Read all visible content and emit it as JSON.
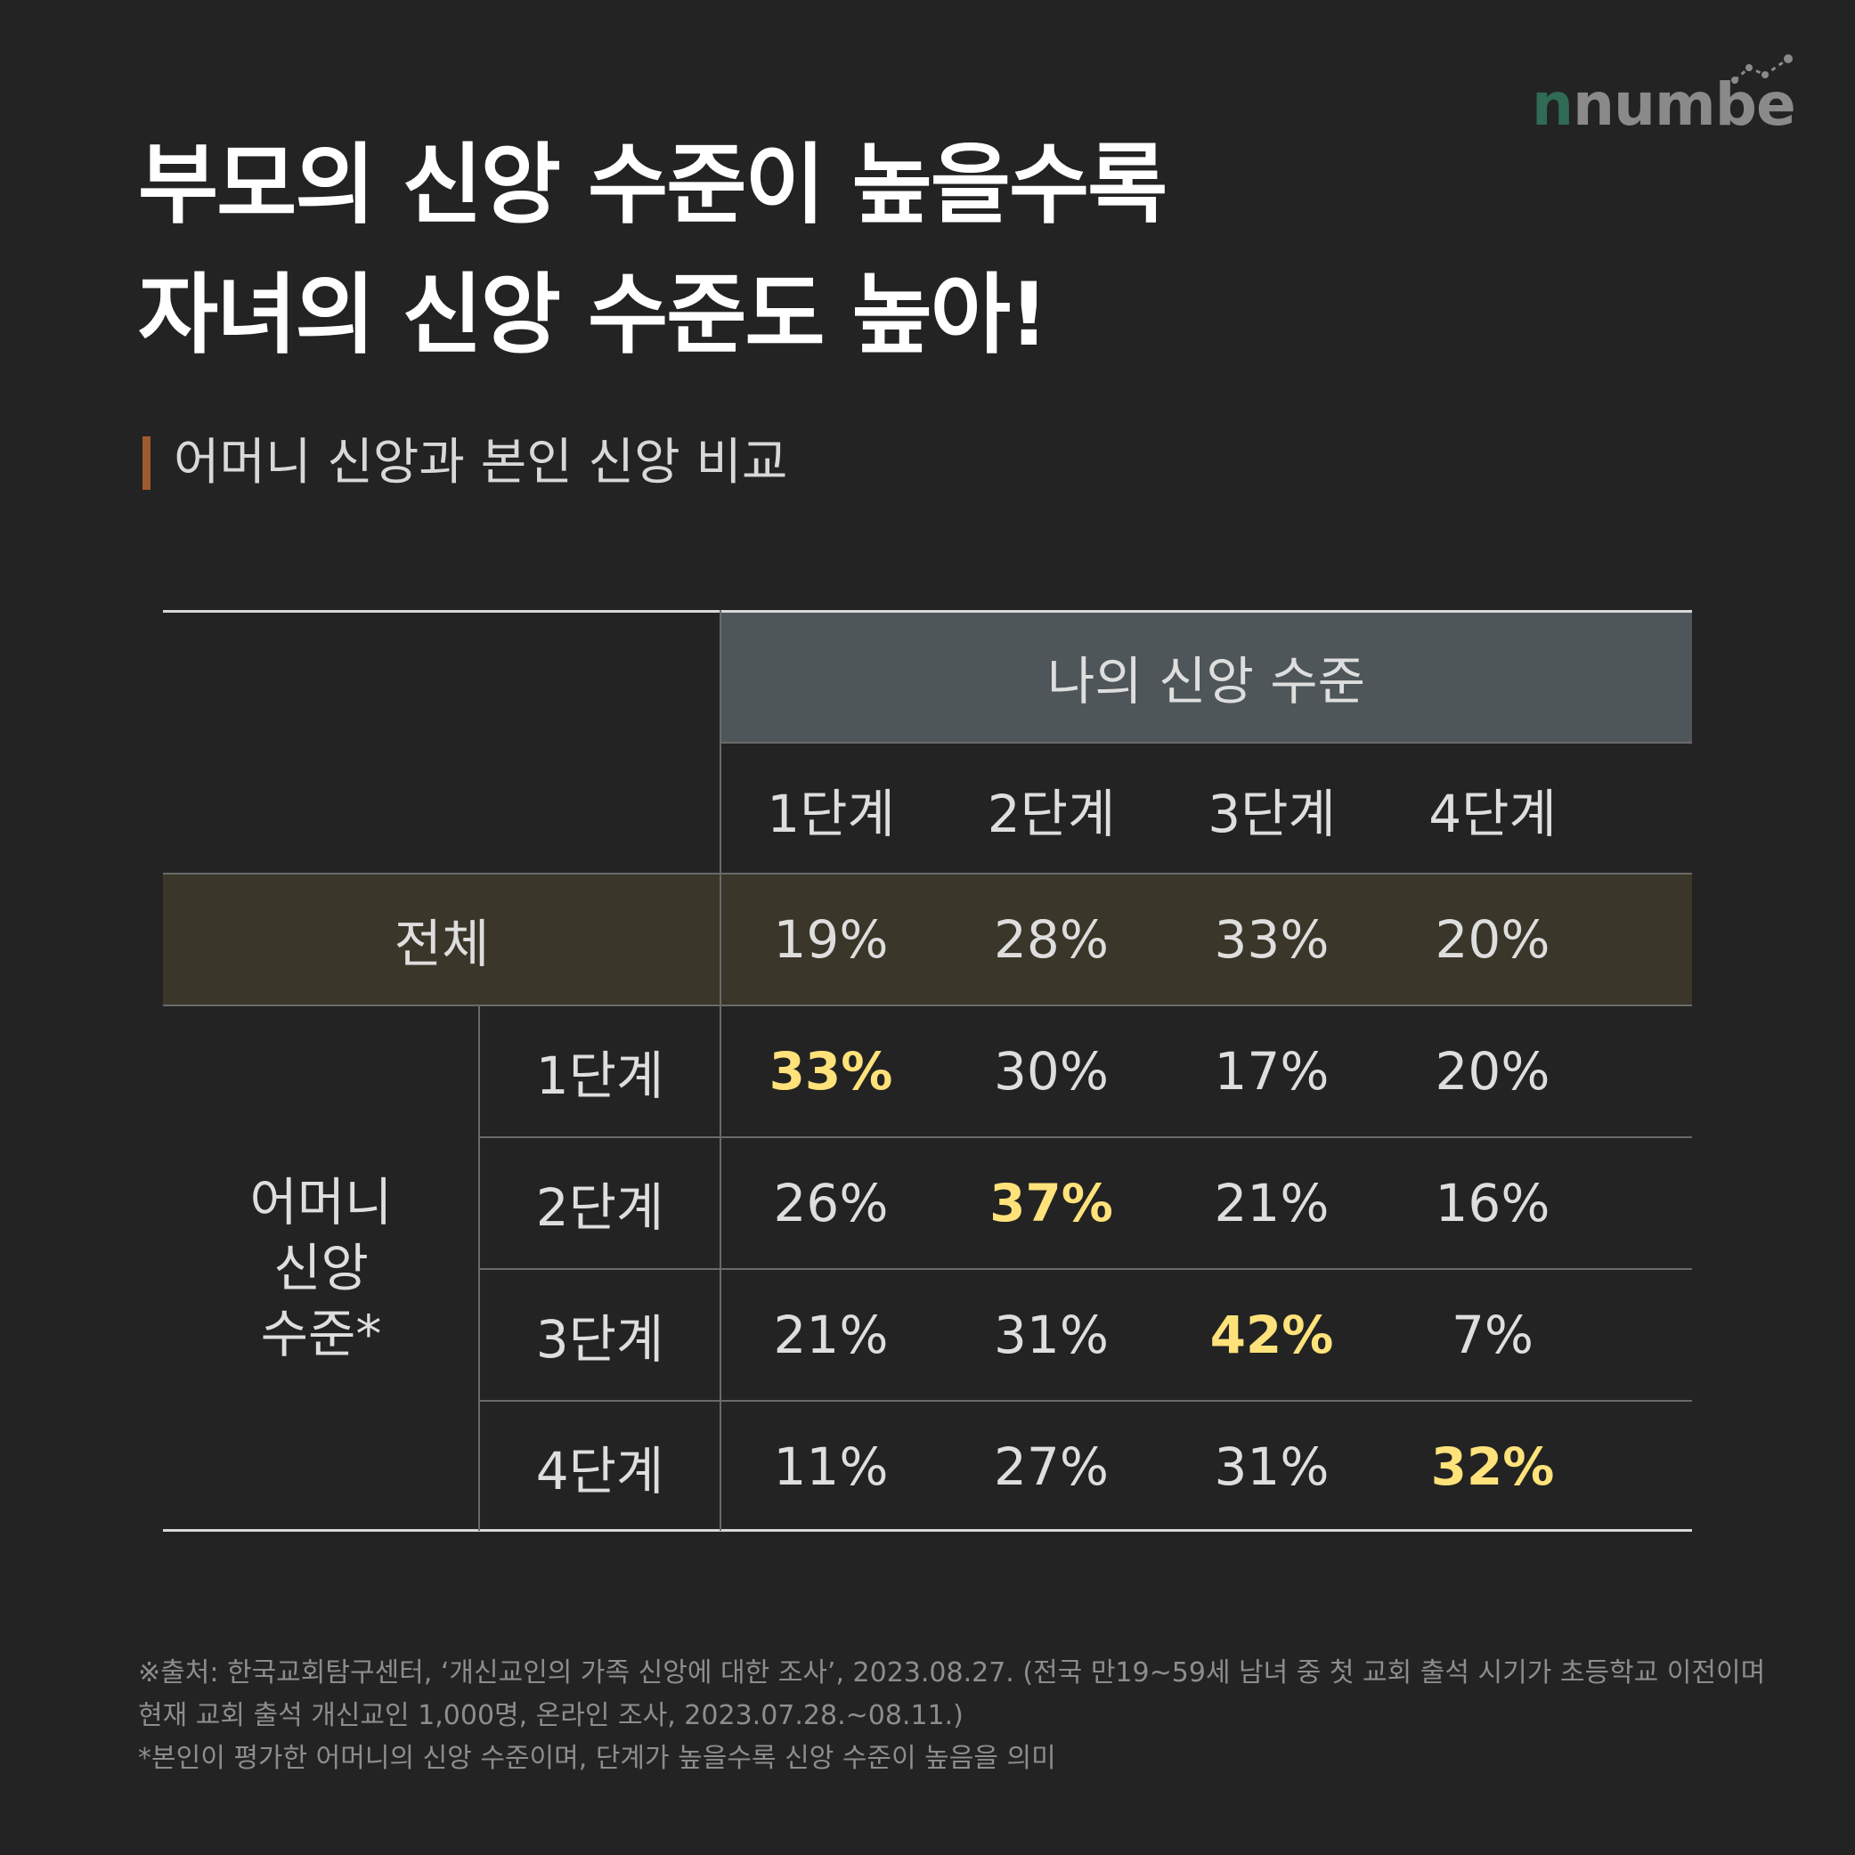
{
  "logo": {
    "text": "numbers",
    "icon": "dotted-trend-line-icon"
  },
  "title": {
    "line1": "부모의 신앙 수준이 높을수록",
    "line2": "자녀의 신앙 수준도 높아!"
  },
  "subtitle": "어머니 신앙과 본인 신앙 비교",
  "colors": {
    "highlight": "#ffe27a",
    "accent_bar": "#a15a2c",
    "header_band": "#4f5659",
    "total_band": "#3a3629"
  },
  "chart_data": {
    "type": "table",
    "column_group_label": "나의 신앙 수준",
    "columns": [
      "1단계",
      "2단계",
      "3단계",
      "4단계"
    ],
    "total_row": {
      "label": "전체",
      "values": [
        "19%",
        "28%",
        "33%",
        "20%"
      ]
    },
    "row_group_label": [
      "어머니",
      "신앙",
      "수준*"
    ],
    "rows": [
      {
        "label": "1단계",
        "values": [
          "33%",
          "30%",
          "17%",
          "20%"
        ],
        "highlight_index": 0
      },
      {
        "label": "2단계",
        "values": [
          "26%",
          "37%",
          "21%",
          "16%"
        ],
        "highlight_index": 1
      },
      {
        "label": "3단계",
        "values": [
          "21%",
          "31%",
          "42%",
          "7%"
        ],
        "highlight_index": 2
      },
      {
        "label": "4단계",
        "values": [
          "11%",
          "27%",
          "31%",
          "32%"
        ],
        "highlight_index": 3
      }
    ]
  },
  "footnotes": [
    "※출처: 한국교회탐구센터, ‘개신교인의 가족 신앙에 대한 조사’, 2023.08.27. (전국 만19~59세 남녀 중 첫 교회 출석 시기가 초등학교 이전이며",
    "현재 교회 출석 개신교인 1,000명, 온라인 조사, 2023.07.28.~08.11.)",
    "*본인이 평가한 어머니의 신앙 수준이며, 단계가 높을수록 신앙 수준이 높음을 의미"
  ]
}
